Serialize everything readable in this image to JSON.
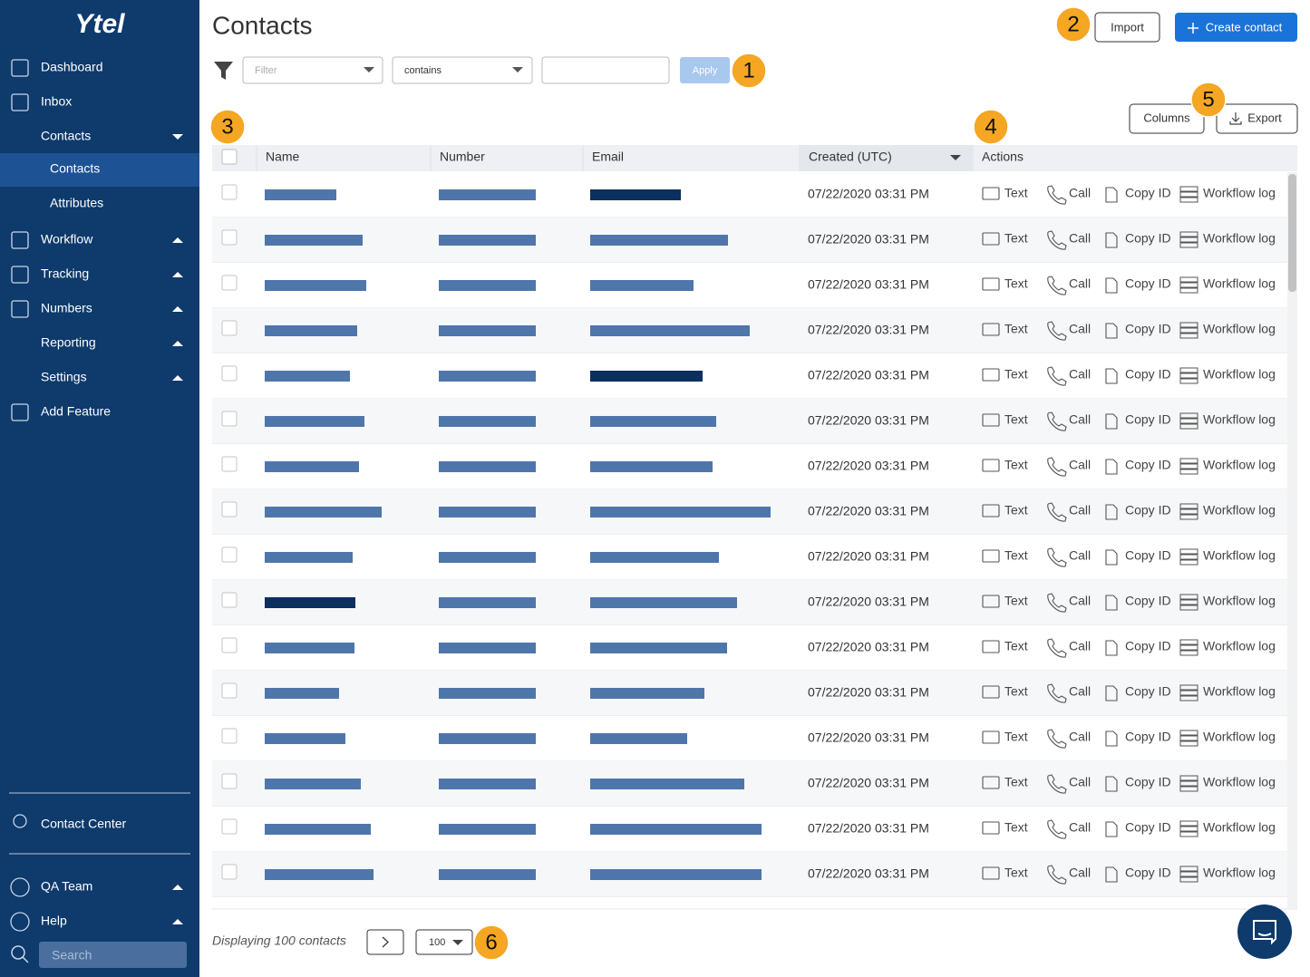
{
  "sidebar": {
    "logo": "Ytel",
    "items": [
      "Dashboard",
      "Inbox",
      "Contacts",
      "Workflow",
      "Tracking",
      "Numbers",
      "Reporting",
      "Settings",
      "Add Feature"
    ],
    "sub_items": [
      "Contacts",
      "Attributes"
    ],
    "contact_center": "Contact Center",
    "team": "QA Team",
    "help": "Help",
    "search_placeholder": "Search"
  },
  "header": {
    "title": "Contacts",
    "import": "Import",
    "create": "Create contact"
  },
  "filter": {
    "field_placeholder": "Filter",
    "operator": "contains",
    "apply": "Apply"
  },
  "toolbar": {
    "columns": "Columns",
    "export": "Export"
  },
  "callouts": [
    "1",
    "2",
    "3",
    "4",
    "5",
    "6"
  ],
  "table": {
    "columns": [
      "Name",
      "Number",
      "Email",
      "Created (UTC)",
      "Actions"
    ],
    "actions": [
      "Text",
      "Call",
      "Copy ID",
      "Workflow log"
    ],
    "rows": [
      "07/22/2020 03:31 PM",
      "07/22/2020 03:31 PM",
      "07/22/2020 03:31 PM",
      "07/22/2020 03:31 PM",
      "07/22/2020 03:31 PM",
      "07/22/2020 03:31 PM",
      "07/22/2020 03:31 PM",
      "07/22/2020 03:31 PM",
      "07/22/2020 03:31 PM",
      "07/22/2020 03:31 PM",
      "07/22/2020 03:31 PM",
      "07/22/2020 03:31 PM",
      "07/22/2020 03:31 PM",
      "07/22/2020 03:31 PM",
      "07/22/2020 03:31 PM",
      "07/22/2020 03:31 PM"
    ]
  },
  "footer": {
    "summary": "Displaying 100 contacts",
    "page_size": "100"
  }
}
